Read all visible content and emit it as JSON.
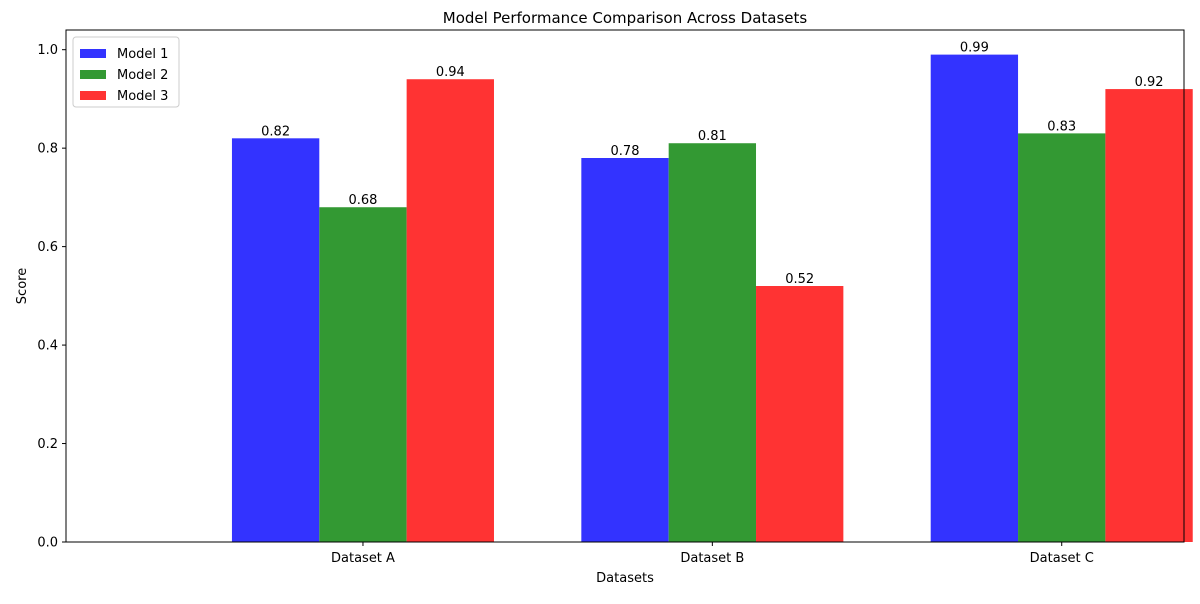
{
  "chart_data": {
    "type": "bar",
    "title": "Model Performance Comparison Across Datasets",
    "xlabel": "Datasets",
    "ylabel": "Score",
    "categories": [
      "Dataset A",
      "Dataset B",
      "Dataset C"
    ],
    "series": [
      {
        "name": "Model 1",
        "values": [
          0.82,
          0.78,
          0.99
        ],
        "color": "#3333ff"
      },
      {
        "name": "Model 2",
        "values": [
          0.68,
          0.81,
          0.83
        ],
        "color": "#339933"
      },
      {
        "name": "Model 3",
        "values": [
          0.94,
          0.52,
          0.92
        ],
        "color": "#ff3333"
      }
    ],
    "ylim": [
      0,
      1.04
    ],
    "yticks": [
      0.0,
      0.2,
      0.4,
      0.6,
      0.8,
      1.0
    ],
    "ytick_labels": [
      "0.0",
      "0.2",
      "0.4",
      "0.6",
      "0.8",
      "1.0"
    ],
    "data_labels": [
      [
        "0.82",
        "0.78",
        "0.99"
      ],
      [
        "0.68",
        "0.81",
        "0.83"
      ],
      [
        "0.94",
        "0.52",
        "0.92"
      ]
    ],
    "grid": false,
    "legend_position": "top-left"
  }
}
